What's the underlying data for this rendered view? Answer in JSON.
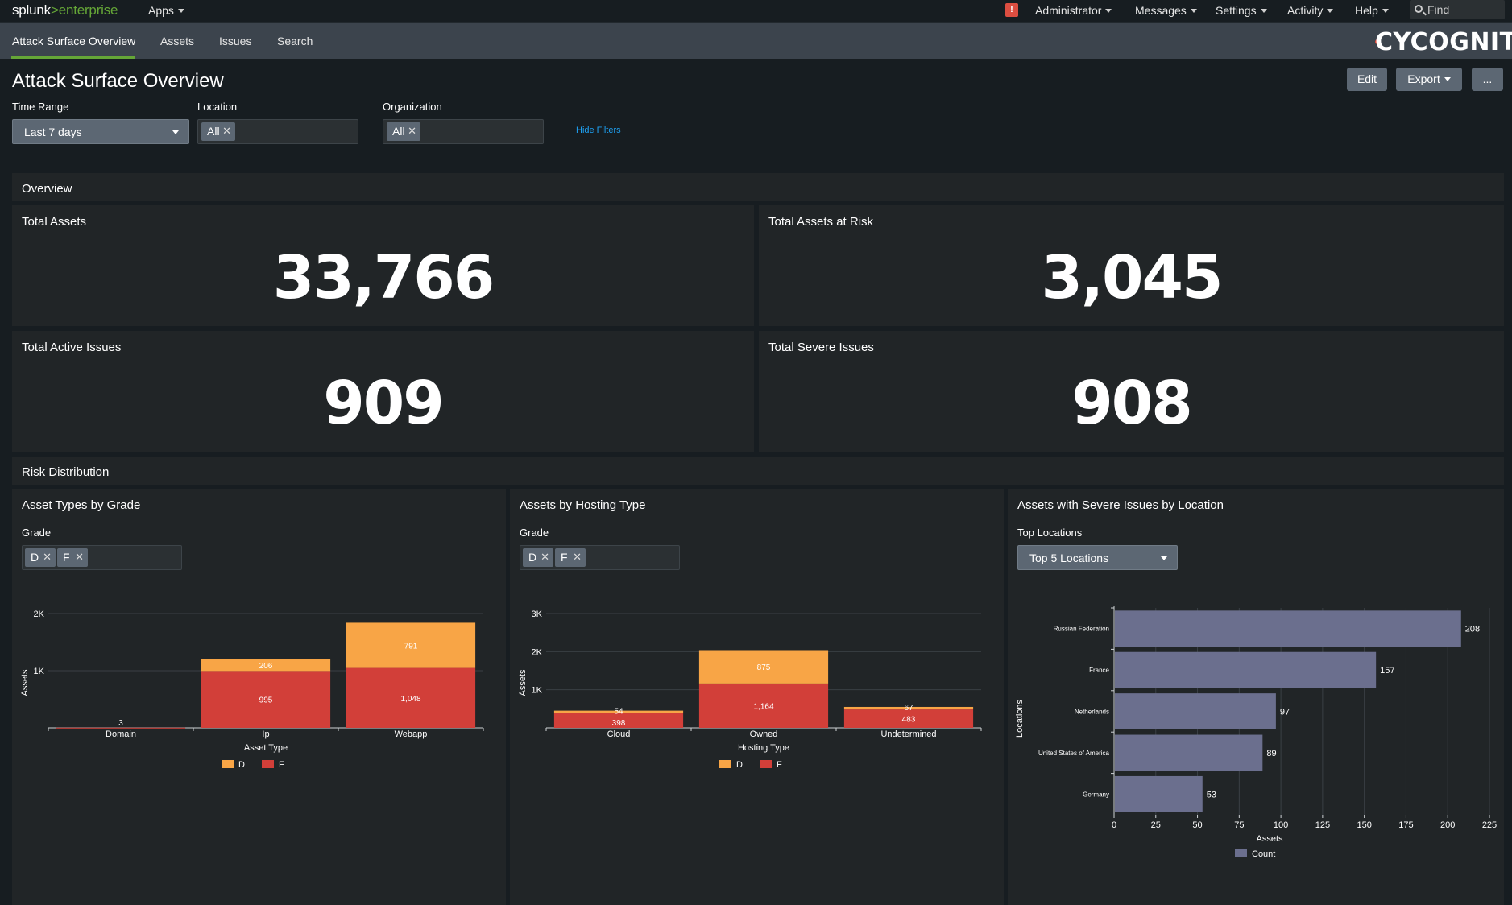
{
  "topbar": {
    "logo_prefix": "splunk",
    "logo_gt": ">",
    "logo_suffix": "enterprise",
    "apps_label": "Apps",
    "alert_icon_text": "!",
    "menus": [
      "Administrator",
      "Messages",
      "Settings",
      "Activity",
      "Help"
    ],
    "find_label": "Find"
  },
  "appbar": {
    "tabs": [
      "Attack Surface Overview",
      "Assets",
      "Issues",
      "Search"
    ],
    "brand": "CYCOGNITO"
  },
  "dashboard": {
    "title": "Attack Surface Overview",
    "buttons": {
      "edit": "Edit",
      "export": "Export",
      "more": "..."
    }
  },
  "filters": {
    "time_range": {
      "label": "Time Range",
      "value": "Last 7 days"
    },
    "location": {
      "label": "Location",
      "chips": [
        "All"
      ]
    },
    "organization": {
      "label": "Organization",
      "chips": [
        "All"
      ]
    },
    "hide_filters": "Hide Filters"
  },
  "overview": {
    "header": "Overview",
    "kpis": [
      {
        "title": "Total Assets",
        "value": "33,766"
      },
      {
        "title": "Total Assets at Risk",
        "value": "3,045"
      },
      {
        "title": "Total Active Issues",
        "value": "909"
      },
      {
        "title": "Total Severe Issues",
        "value": "908"
      }
    ]
  },
  "risk": {
    "header": "Risk Distribution",
    "panels": [
      {
        "title": "Asset Types by Grade",
        "input_label": "Grade",
        "chips": [
          "D",
          "F"
        ]
      },
      {
        "title": "Assets by Hosting Type",
        "input_label": "Grade",
        "chips": [
          "D",
          "F"
        ]
      },
      {
        "title": "Assets with Severe Issues by Location",
        "input_label": "Top Locations",
        "dropdown_value": "Top 5 Locations"
      }
    ]
  },
  "colors": {
    "grade_d": "#f8a546",
    "grade_f": "#d23f39",
    "count": "#6b6f8e",
    "accent": "#65a637",
    "link": "#1ea1f3"
  },
  "chart_data": [
    {
      "type": "bar",
      "stacked": true,
      "categories": [
        "Domain",
        "Ip",
        "Webapp"
      ],
      "series": [
        {
          "name": "F",
          "values": [
            3,
            995,
            1048
          ]
        },
        {
          "name": "D",
          "values": [
            0,
            206,
            791
          ]
        }
      ],
      "data_labels": [
        [
          "3",
          "",
          ""
        ],
        [
          "995",
          "206"
        ],
        [
          "1,048",
          "791"
        ]
      ],
      "xlabel": "Asset Type",
      "ylabel": "Assets",
      "yticks": [
        "1K",
        "2K"
      ],
      "ytick_values": [
        1000,
        2000
      ],
      "ylim": [
        0,
        2000
      ],
      "legend": [
        "D",
        "F"
      ],
      "legend_position": "bottom"
    },
    {
      "type": "bar",
      "stacked": true,
      "categories": [
        "Cloud",
        "Owned",
        "Undetermined"
      ],
      "series": [
        {
          "name": "F",
          "values": [
            398,
            1164,
            483
          ]
        },
        {
          "name": "D",
          "values": [
            54,
            875,
            67
          ]
        }
      ],
      "data_labels_f": [
        "398",
        "1,164",
        "483"
      ],
      "data_labels_d": [
        "54",
        "875",
        "67"
      ],
      "xlabel": "Hosting Type",
      "ylabel": "Assets",
      "yticks": [
        "1K",
        "2K",
        "3K"
      ],
      "ytick_values": [
        1000,
        2000,
        3000
      ],
      "ylim": [
        0,
        3000
      ],
      "legend": [
        "D",
        "F"
      ],
      "legend_position": "bottom"
    },
    {
      "type": "bar",
      "orientation": "horizontal",
      "categories": [
        "Russian Federation",
        "France",
        "Netherlands",
        "United States of America",
        "Germany"
      ],
      "series": [
        {
          "name": "Count",
          "values": [
            208,
            157,
            97,
            89,
            53
          ]
        }
      ],
      "xlabel": "Assets",
      "ylabel": "Locations",
      "xticks": [
        0,
        25,
        50,
        75,
        100,
        125,
        150,
        175,
        200,
        225
      ],
      "xlim": [
        0,
        225
      ],
      "legend": [
        "Count"
      ],
      "legend_position": "bottom"
    }
  ]
}
